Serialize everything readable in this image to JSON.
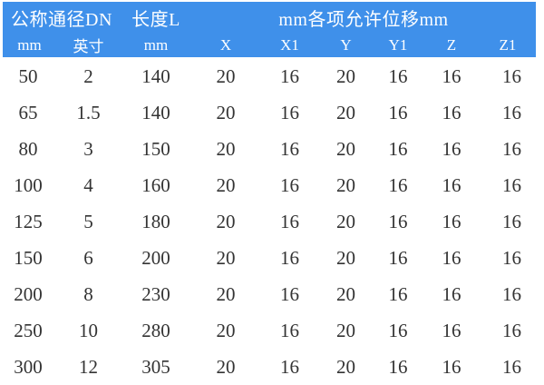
{
  "colors": {
    "header_background": "#3f90ea",
    "header_text": "#ffffff",
    "body_text": "#333333",
    "page_background": "#ffffff"
  },
  "chart_data": {
    "type": "table",
    "title": "",
    "header_groups": [
      {
        "label": "公称通径DN",
        "span": 2
      },
      {
        "label": "长度L",
        "span": 1
      },
      {
        "label": "mm各项允许位移mm",
        "span": 6
      }
    ],
    "columns": [
      "mm",
      "英寸",
      "mm",
      "X",
      "X1",
      "Y",
      "Y1",
      "Z",
      "Z1"
    ],
    "rows": [
      [
        "50",
        "2",
        "140",
        "20",
        "16",
        "20",
        "16",
        "16",
        "16"
      ],
      [
        "65",
        "1.5",
        "140",
        "20",
        "16",
        "20",
        "16",
        "16",
        "16"
      ],
      [
        "80",
        "3",
        "150",
        "20",
        "16",
        "20",
        "16",
        "16",
        "16"
      ],
      [
        "100",
        "4",
        "160",
        "20",
        "16",
        "20",
        "16",
        "16",
        "16"
      ],
      [
        "125",
        "5",
        "180",
        "20",
        "16",
        "20",
        "16",
        "16",
        "16"
      ],
      [
        "150",
        "6",
        "200",
        "20",
        "16",
        "20",
        "16",
        "16",
        "16"
      ],
      [
        "200",
        "8",
        "230",
        "20",
        "16",
        "20",
        "16",
        "16",
        "16"
      ],
      [
        "250",
        "10",
        "280",
        "20",
        "16",
        "20",
        "16",
        "16",
        "16"
      ],
      [
        "300",
        "12",
        "305",
        "20",
        "16",
        "20",
        "16",
        "16",
        "16"
      ]
    ]
  }
}
